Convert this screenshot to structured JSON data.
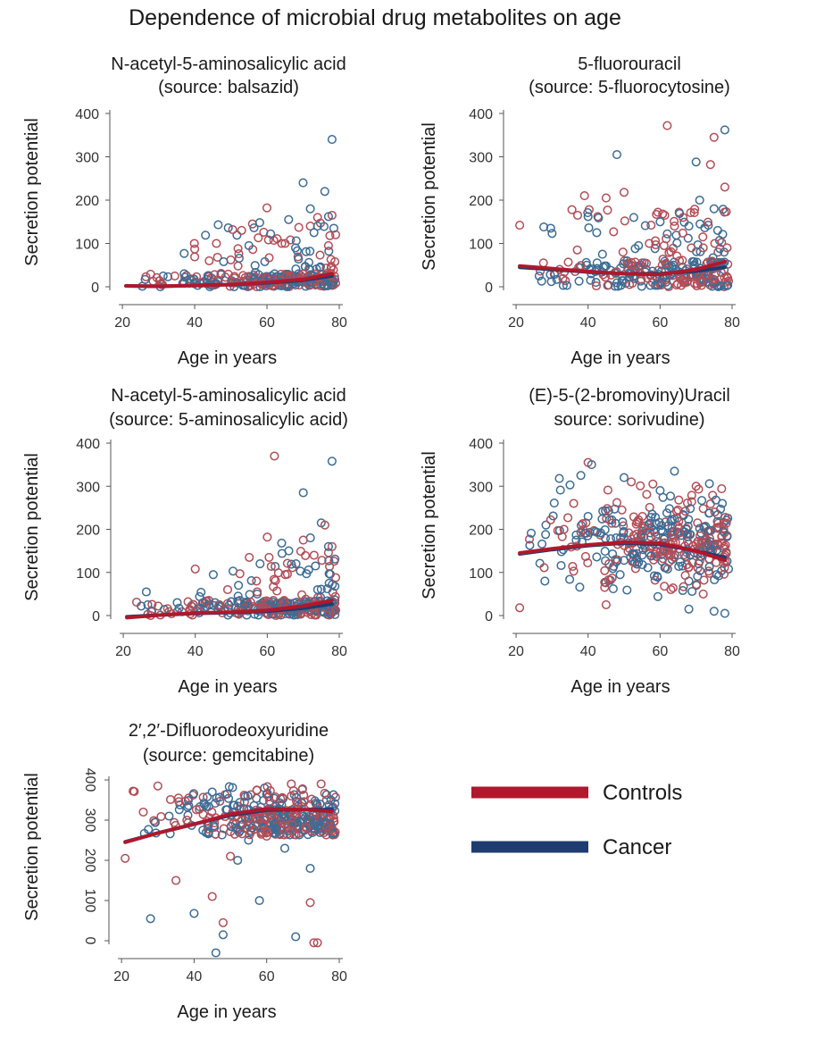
{
  "figure": {
    "title": "Dependence of microbial drug metabolites on age"
  },
  "colors": {
    "controls": "#b0182d",
    "cancer": "#1e3c70",
    "controls_point": "#b34d56",
    "cancer_point": "#3c6c95"
  },
  "legend": {
    "items": [
      {
        "label": "Controls",
        "series": "controls"
      },
      {
        "label": "Cancer",
        "series": "cancer"
      }
    ]
  },
  "chart_data": [
    {
      "id": "balsazid",
      "type": "scatter",
      "title_lines": [
        "N-acetyl-5-aminosalicylic acid",
        "(source: balsazid)"
      ],
      "xlabel": "Age in years",
      "ylabel": "Secretion potential",
      "xlim": [
        18,
        80
      ],
      "ylim": [
        0,
        400
      ],
      "xticks": [
        20,
        40,
        60,
        80
      ],
      "yticks": [
        0,
        100,
        200,
        300,
        400
      ],
      "xtick_labels": [
        "20",
        "40",
        "60",
        "80"
      ],
      "ytick_labels": [
        "0",
        "100",
        "200",
        "300",
        "400"
      ],
      "ytick_rotated": false,
      "profile": {
        "kind": "skewed",
        "dense_y_range": [
          0,
          30
        ],
        "outlier_fraction": 0.18,
        "outlier_age_weight": "rising",
        "cancer_count": 150,
        "controls_count": 150,
        "seed": 11
      },
      "highlight_points": {
        "cancer": [
          [
            78,
            340
          ],
          [
            70,
            240
          ],
          [
            76,
            220
          ],
          [
            72,
            180
          ],
          [
            58,
            148
          ],
          [
            66,
            155
          ],
          [
            77,
            162
          ],
          [
            73,
            125
          ],
          [
            55,
            95
          ],
          [
            48,
            58
          ],
          [
            61,
            122
          ],
          [
            74,
            140
          ]
        ],
        "controls": [
          [
            60,
            182
          ],
          [
            78,
            165
          ],
          [
            56,
            145
          ],
          [
            72,
            140
          ],
          [
            40,
            87
          ],
          [
            74,
            160
          ],
          [
            79,
            120
          ],
          [
            65,
            100
          ],
          [
            50,
            62
          ],
          [
            44,
            60
          ],
          [
            77,
            95
          ],
          [
            53,
            130
          ]
        ]
      },
      "trend": {
        "controls": [
          [
            21,
            2
          ],
          [
            30,
            1
          ],
          [
            40,
            3
          ],
          [
            50,
            5
          ],
          [
            60,
            10
          ],
          [
            70,
            17
          ],
          [
            78,
            30
          ]
        ],
        "cancer": [
          [
            21,
            2
          ],
          [
            30,
            1
          ],
          [
            40,
            3
          ],
          [
            50,
            5
          ],
          [
            60,
            9
          ],
          [
            70,
            15
          ],
          [
            78,
            25
          ]
        ]
      }
    },
    {
      "id": "fluorocytosine",
      "type": "scatter",
      "title_lines": [
        "5-fluorouracil",
        "(source: 5-fluorocytosine)"
      ],
      "xlabel": "Age in years",
      "ylabel": "Secretion potential",
      "xlim": [
        18,
        80
      ],
      "ylim": [
        0,
        400
      ],
      "xticks": [
        20,
        40,
        60,
        80
      ],
      "yticks": [
        0,
        100,
        200,
        300,
        400
      ],
      "xtick_labels": [
        "20",
        "40",
        "60",
        "80"
      ],
      "ytick_labels": [
        "0",
        "100",
        "200",
        "300",
        "400"
      ],
      "ytick_rotated": false,
      "profile": {
        "kind": "skewed",
        "dense_y_range": [
          0,
          60
        ],
        "outlier_fraction": 0.25,
        "outlier_age_weight": "flat",
        "cancer_count": 150,
        "controls_count": 150,
        "seed": 23
      },
      "highlight_points": {
        "cancer": [
          [
            78,
            362
          ],
          [
            48,
            305
          ],
          [
            70,
            288
          ],
          [
            40,
            162
          ],
          [
            60,
            150
          ],
          [
            75,
            180
          ],
          [
            68,
            140
          ],
          [
            62,
            122
          ],
          [
            54,
            95
          ],
          [
            44,
            75
          ],
          [
            71,
            200
          ],
          [
            76,
            130
          ]
        ],
        "controls": [
          [
            21,
            142
          ],
          [
            62,
            372
          ],
          [
            75,
            345
          ],
          [
            74,
            282
          ],
          [
            39,
            210
          ],
          [
            50,
            218
          ],
          [
            45,
            205
          ],
          [
            64,
            140
          ],
          [
            37,
            85
          ],
          [
            78,
            230
          ],
          [
            72,
            90
          ],
          [
            57,
            100
          ]
        ]
      },
      "trend": {
        "controls": [
          [
            21,
            48
          ],
          [
            30,
            42
          ],
          [
            40,
            35
          ],
          [
            50,
            30
          ],
          [
            60,
            28
          ],
          [
            70,
            40
          ],
          [
            78,
            58
          ]
        ],
        "cancer": [
          [
            21,
            45
          ],
          [
            30,
            40
          ],
          [
            40,
            34
          ],
          [
            50,
            30
          ],
          [
            60,
            30
          ],
          [
            70,
            36
          ],
          [
            78,
            45
          ]
        ]
      }
    },
    {
      "id": "aminosalicylic",
      "type": "scatter",
      "title_lines": [
        "N-acetyl-5-aminosalicylic acid",
        "(source: 5-aminosalicylic acid)"
      ],
      "xlabel": "Age in years",
      "ylabel": "Secretion potential",
      "xlim": [
        18,
        80
      ],
      "ylim": [
        0,
        400
      ],
      "xticks": [
        20,
        40,
        60,
        80
      ],
      "yticks": [
        0,
        100,
        200,
        300,
        400
      ],
      "xtick_labels": [
        "20",
        "40",
        "60",
        "80"
      ],
      "ytick_labels": [
        "0",
        "100",
        "200",
        "300",
        "400"
      ],
      "ytick_rotated": false,
      "profile": {
        "kind": "skewed",
        "dense_y_range": [
          0,
          35
        ],
        "outlier_fraction": 0.2,
        "outlier_age_weight": "rising",
        "cancer_count": 150,
        "controls_count": 150,
        "seed": 37
      },
      "highlight_points": {
        "cancer": [
          [
            78,
            358
          ],
          [
            70,
            285
          ],
          [
            75,
            215
          ],
          [
            72,
            180
          ],
          [
            64,
            168
          ],
          [
            77,
            160
          ],
          [
            58,
            120
          ],
          [
            66,
            150
          ],
          [
            45,
            95
          ],
          [
            52,
            70
          ],
          [
            68,
            120
          ],
          [
            74,
            60
          ]
        ],
        "controls": [
          [
            62,
            370
          ],
          [
            40,
            108
          ],
          [
            60,
            182
          ],
          [
            78,
            160
          ],
          [
            76,
            210
          ],
          [
            55,
            135
          ],
          [
            70,
            175
          ],
          [
            49,
            60
          ],
          [
            73,
            140
          ],
          [
            65,
            95
          ],
          [
            57,
            80
          ],
          [
            79,
            88
          ]
        ]
      },
      "trend": {
        "controls": [
          [
            21,
            -5
          ],
          [
            30,
            1
          ],
          [
            40,
            6
          ],
          [
            50,
            8
          ],
          [
            60,
            12
          ],
          [
            70,
            22
          ],
          [
            78,
            35
          ]
        ],
        "cancer": [
          [
            21,
            -3
          ],
          [
            30,
            1
          ],
          [
            40,
            5
          ],
          [
            50,
            7
          ],
          [
            60,
            10
          ],
          [
            70,
            17
          ],
          [
            78,
            27
          ]
        ]
      }
    },
    {
      "id": "sorivudine",
      "type": "scatter",
      "title_lines": [
        "(E)-5-(2-bromoviny)Uracil",
        "source: sorivudine)"
      ],
      "xlabel": "Age in years",
      "ylabel": "Secretion potential",
      "xlim": [
        18,
        80
      ],
      "ylim": [
        0,
        400
      ],
      "xticks": [
        20,
        40,
        60,
        80
      ],
      "yticks": [
        0,
        100,
        200,
        300,
        400
      ],
      "xtick_labels": [
        "20",
        "40",
        "60",
        "80"
      ],
      "ytick_labels": [
        "0",
        "100",
        "200",
        "300",
        "400"
      ],
      "ytick_rotated": false,
      "profile": {
        "kind": "wide",
        "center": 170,
        "spread": 95,
        "cancer_count": 190,
        "controls_count": 190,
        "seed": 51
      },
      "highlight_points": {
        "cancer": [
          [
            32,
            318
          ],
          [
            64,
            335
          ],
          [
            38,
            325
          ],
          [
            28,
            80
          ],
          [
            41,
            350
          ],
          [
            40,
            230
          ],
          [
            55,
            140
          ],
          [
            60,
            290
          ],
          [
            75,
            10
          ],
          [
            50,
            320
          ],
          [
            78,
            5
          ],
          [
            68,
            15
          ]
        ],
        "controls": [
          [
            21,
            18
          ],
          [
            40,
            355
          ],
          [
            48,
            262
          ],
          [
            52,
            310
          ],
          [
            58,
            305
          ],
          [
            70,
            300
          ],
          [
            45,
            25
          ],
          [
            65,
            245
          ],
          [
            72,
            50
          ],
          [
            78,
            140
          ],
          [
            63,
            60
          ],
          [
            36,
            260
          ]
        ]
      },
      "trend": {
        "controls": [
          [
            21,
            145
          ],
          [
            30,
            155
          ],
          [
            40,
            164
          ],
          [
            50,
            170
          ],
          [
            60,
            168
          ],
          [
            70,
            150
          ],
          [
            78,
            128
          ]
        ],
        "cancer": [
          [
            21,
            143
          ],
          [
            30,
            153
          ],
          [
            40,
            162
          ],
          [
            50,
            168
          ],
          [
            60,
            165
          ],
          [
            70,
            150
          ],
          [
            78,
            135
          ]
        ]
      }
    },
    {
      "id": "gemcitabine",
      "type": "scatter",
      "title_lines": [
        "2′,2′-Difluorodeoxyuridine",
        "(source: gemcitabine)"
      ],
      "xlabel": "Age in years",
      "ylabel": "Secretion potential",
      "xlim": [
        18,
        80
      ],
      "ylim": [
        0,
        400
      ],
      "xticks": [
        20,
        40,
        60,
        80
      ],
      "yticks": [
        0,
        100,
        200,
        300,
        400
      ],
      "xtick_labels": [
        "20",
        "40",
        "60",
        "80"
      ],
      "ytick_labels": [
        "0",
        "100",
        "200",
        "300",
        "400"
      ],
      "ytick_rotated": true,
      "profile": {
        "kind": "top",
        "center": 345,
        "spread": 55,
        "cancer_count": 190,
        "controls_count": 190,
        "seed": 77
      },
      "highlight_points": {
        "cancer": [
          [
            28,
            55
          ],
          [
            40,
            68
          ],
          [
            48,
            15
          ],
          [
            68,
            10
          ],
          [
            46,
            -30
          ],
          [
            58,
            100
          ],
          [
            52,
            200
          ],
          [
            65,
            230
          ],
          [
            72,
            180
          ],
          [
            55,
            250
          ],
          [
            44,
            270
          ],
          [
            62,
            290
          ]
        ],
        "controls": [
          [
            21,
            205
          ],
          [
            30,
            385
          ],
          [
            26,
            320
          ],
          [
            48,
            45
          ],
          [
            73,
            -5
          ],
          [
            74,
            -5
          ],
          [
            72,
            95
          ],
          [
            45,
            110
          ],
          [
            35,
            150
          ],
          [
            50,
            210
          ],
          [
            38,
            300
          ],
          [
            60,
            260
          ]
        ]
      },
      "trend": {
        "controls": [
          [
            21,
            245
          ],
          [
            30,
            268
          ],
          [
            40,
            290
          ],
          [
            50,
            315
          ],
          [
            60,
            328
          ],
          [
            70,
            326
          ],
          [
            78,
            322
          ]
        ],
        "cancer": [
          [
            21,
            246
          ],
          [
            30,
            268
          ],
          [
            40,
            290
          ],
          [
            50,
            312
          ],
          [
            60,
            325
          ],
          [
            70,
            326
          ],
          [
            78,
            326
          ]
        ]
      }
    }
  ]
}
